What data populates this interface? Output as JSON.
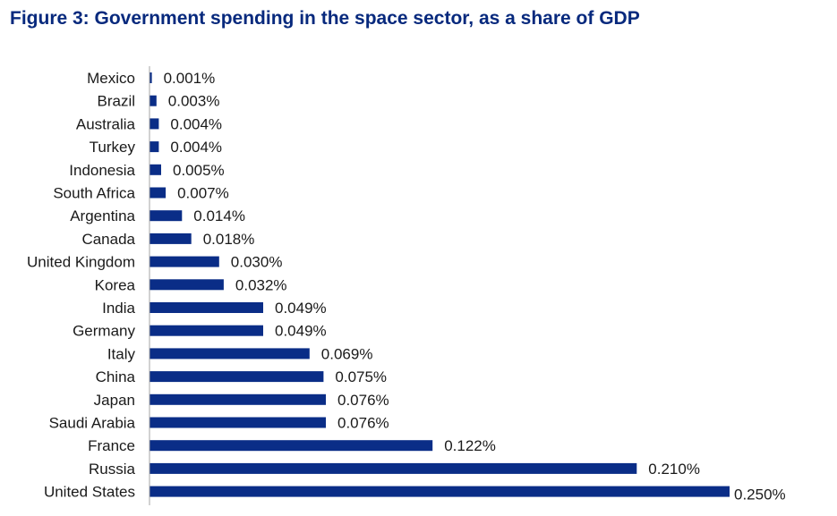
{
  "chart_data": {
    "type": "bar",
    "orientation": "horizontal",
    "title": "Figure 3: Government spending in the space sector, as a share of GDP",
    "categories": [
      "Mexico",
      "Brazil",
      "Australia",
      "Turkey",
      "Indonesia",
      "South Africa",
      "Argentina",
      "Canada",
      "United Kingdom",
      "Korea",
      "India",
      "Germany",
      "Italy",
      "China",
      "Japan",
      "Saudi Arabia",
      "France",
      "Russia",
      "United States"
    ],
    "values": [
      0.001,
      0.003,
      0.004,
      0.004,
      0.005,
      0.007,
      0.014,
      0.018,
      0.03,
      0.032,
      0.049,
      0.049,
      0.069,
      0.075,
      0.076,
      0.076,
      0.122,
      0.21,
      0.25
    ],
    "data_labels": [
      "0.001%",
      "0.003%",
      "0.004%",
      "0.004%",
      "0.005%",
      "0.007%",
      "0.014%",
      "0.018%",
      "0.030%",
      "0.032%",
      "0.049%",
      "0.049%",
      "0.069%",
      "0.075%",
      "0.076%",
      "0.076%",
      "0.122%",
      "0.210%",
      "0.250%"
    ],
    "unit": "%",
    "xlabel": "",
    "ylabel": "",
    "xlim": [
      0,
      0.25
    ],
    "grid": false,
    "legend": "none",
    "colors": {
      "bar": "#0a2d87",
      "title": "#07297d",
      "axis": "#a6a6a6",
      "text": "#1a1a1a"
    }
  }
}
